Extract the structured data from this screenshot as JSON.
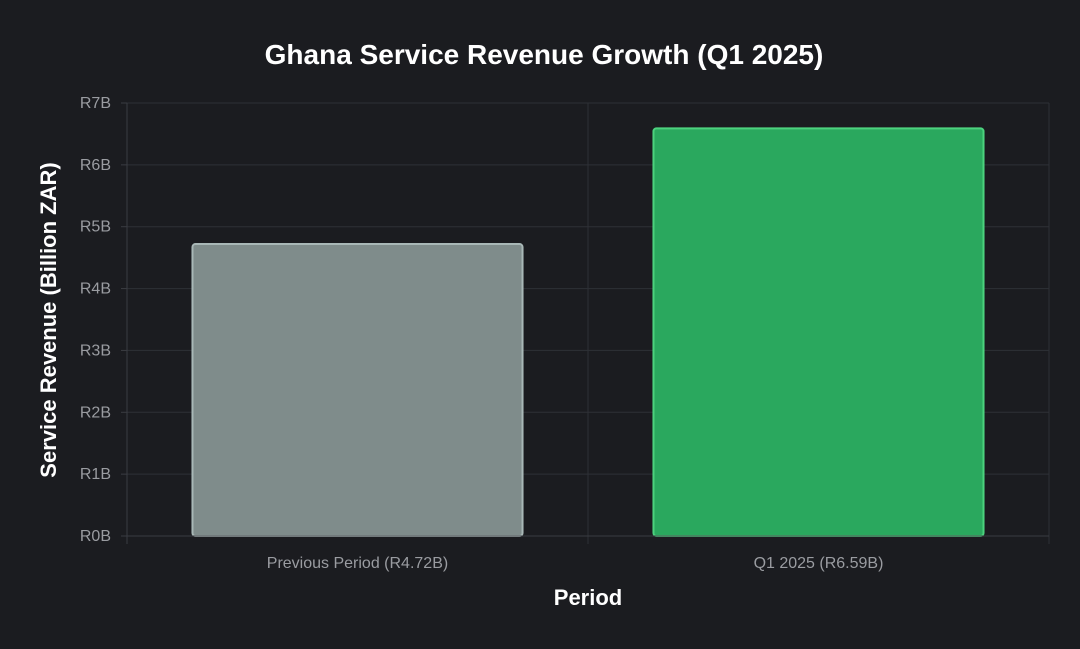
{
  "chart_data": {
    "type": "bar",
    "title": "Ghana Service Revenue Growth (Q1 2025)",
    "xlabel": "Period",
    "ylabel": "Service Revenue (Billion ZAR)",
    "categories": [
      "Previous Period (R4.72B)",
      "Q1 2025 (R6.59B)"
    ],
    "values": [
      4.72,
      6.59
    ],
    "ylim": [
      0,
      7
    ],
    "yticks": [
      0,
      1,
      2,
      3,
      4,
      5,
      6,
      7
    ],
    "ytick_labels": [
      "R0B",
      "R1B",
      "R2B",
      "R3B",
      "R4B",
      "R5B",
      "R6B",
      "R7B"
    ],
    "grid": true,
    "legend": "none",
    "colors": {
      "background": "#1b1c20",
      "bar_fills": [
        "#7f8c8b",
        "#2aa85e"
      ],
      "bar_strokes": [
        "#a9b8b7",
        "#4cd27e"
      ]
    }
  }
}
